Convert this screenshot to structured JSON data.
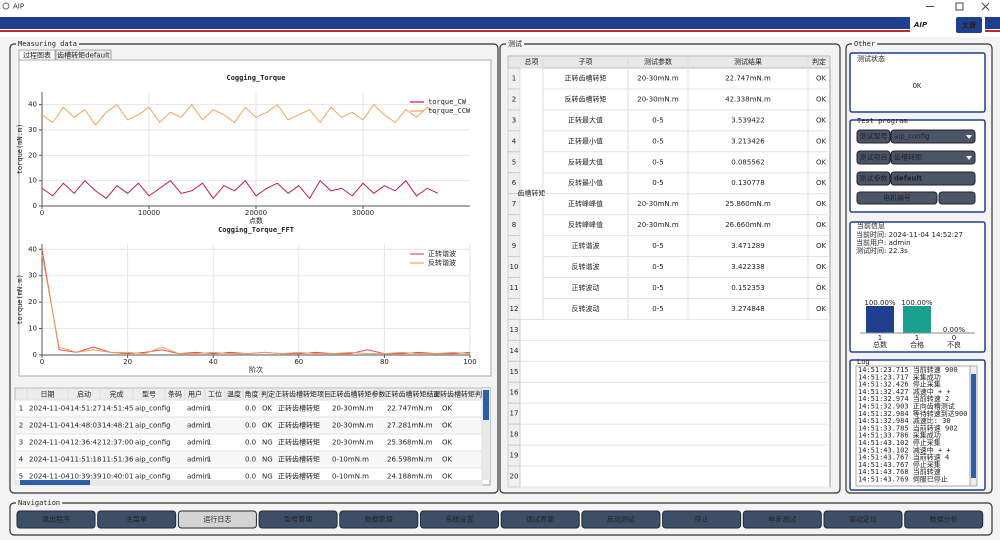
{
  "window": {
    "title": "AIP"
  },
  "header": {
    "logo": "AIP",
    "logo_cn": "文普"
  },
  "measuring": {
    "title": "Measuring data",
    "tabs": [
      "过程图表",
      "齿槽转矩default"
    ]
  },
  "chart_data": [
    {
      "type": "line",
      "title": "Cogging_Torque",
      "x_label": "点数",
      "y_label": "torque(mN.m)",
      "x": [
        0,
        1000,
        2000,
        3000,
        4000,
        5000,
        6000,
        7000,
        8000,
        9000,
        10000,
        11000,
        12000,
        13000,
        14000,
        15000,
        16000,
        17000,
        18000,
        19000,
        20000,
        21000,
        22000,
        23000,
        24000,
        25000,
        26000,
        27000,
        28000,
        29000,
        30000,
        31000,
        32000,
        33000,
        34000,
        35000,
        36000,
        37000
      ],
      "series": [
        {
          "name": "torque_CW",
          "color": "#c2185b",
          "values": [
            7,
            4,
            9,
            5,
            10,
            6,
            3,
            8,
            5,
            9,
            4,
            7,
            10,
            5,
            6,
            9,
            3,
            8,
            6,
            10,
            4,
            7,
            9,
            5,
            8,
            3,
            10,
            6,
            7,
            4,
            9,
            5,
            8,
            6,
            10,
            4,
            7,
            5
          ]
        },
        {
          "name": "torque_CCW",
          "color": "#f4a460",
          "values": [
            36,
            33,
            39,
            35,
            38,
            32,
            37,
            40,
            34,
            36,
            39,
            33,
            37,
            35,
            40,
            34,
            38,
            36,
            33,
            39,
            35,
            37,
            40,
            34,
            36,
            38,
            33,
            39,
            35,
            37,
            34,
            40,
            36,
            33,
            38,
            35,
            39,
            36
          ]
        }
      ],
      "xlim": [
        0,
        40000
      ],
      "xticks": [
        0,
        10000,
        20000,
        30000
      ],
      "ylim": [
        0,
        45
      ],
      "yticks": [
        0,
        10,
        20,
        30,
        40
      ],
      "grid": true,
      "legend": "upper right"
    },
    {
      "type": "line",
      "title": "Cogging_Torque_FFT",
      "x_label": "阶次",
      "y_label": "torque(mN.m)",
      "x": [
        0,
        4,
        8,
        12,
        16,
        20,
        24,
        28,
        32,
        36,
        40,
        44,
        48,
        52,
        56,
        60,
        64,
        68,
        72,
        76,
        80,
        84,
        88,
        92,
        96,
        100
      ],
      "series": [
        {
          "name": "正转谐波",
          "color": "#d9534f",
          "values": [
            40,
            2,
            1,
            3,
            1,
            0.5,
            1,
            2,
            0.5,
            1,
            0.5,
            1,
            0.5,
            1,
            0.5,
            0.5,
            1,
            0.5,
            0.5,
            2,
            0.5,
            0.5,
            1,
            0.5,
            0.5,
            1
          ]
        },
        {
          "name": "反转谐波",
          "color": "#f0a060",
          "values": [
            38,
            3,
            1,
            2,
            1,
            1,
            0.5,
            3,
            0.5,
            0.5,
            1,
            0.5,
            0.5,
            1,
            0.5,
            1,
            0.5,
            0.5,
            1,
            0.5,
            0.5,
            1,
            0.5,
            0.5,
            1,
            0.5
          ]
        }
      ],
      "xlim": [
        0,
        100
      ],
      "xticks": [
        0,
        20,
        40,
        60,
        80,
        100
      ],
      "ylim": [
        0,
        42
      ],
      "yticks": [
        0,
        10,
        20,
        30,
        40
      ],
      "grid": true,
      "legend": "upper right"
    },
    {
      "type": "bar",
      "categories": [
        "总数",
        "合格",
        "不良"
      ],
      "counts": [
        1,
        1,
        0
      ],
      "values": [
        100,
        100,
        0
      ],
      "value_labels": [
        "100.00%",
        "100.00%",
        "0.00%"
      ],
      "colors": [
        "#1f3f8f",
        "#1aa08f",
        "#999999"
      ],
      "ylim": [
        0,
        100
      ]
    }
  ],
  "history_table": {
    "columns": [
      "日期",
      "启动",
      "完成",
      "型号",
      "条码",
      "用户",
      "工位",
      "温度",
      "角度",
      "判定",
      "正转齿槽转矩项目",
      "正转齿槽转矩参数",
      "正转齿槽转矩结果",
      "正转齿槽转矩判定"
    ],
    "row_numbers": [
      1,
      2,
      3,
      4,
      5
    ],
    "rows": [
      [
        "2024-11-04",
        "14:51:27",
        "14:51:45",
        "aip_config",
        null,
        "admin",
        "1",
        null,
        "0.0",
        "OK",
        "正转齿槽转矩",
        "20-30mN.m",
        "22.747mN.m",
        "OK"
      ],
      [
        "2024-11-04",
        "14:48:03",
        "14:48:21",
        "aip_config",
        null,
        "admin",
        "1",
        null,
        "0.0",
        "OK",
        "正转齿槽转矩",
        "20-30mN.m",
        "27.281mN.m",
        "OK"
      ],
      [
        "2024-11-04",
        "12:36:42",
        "12:37:00",
        "aip_config",
        null,
        "admin",
        "1",
        null,
        "0.0",
        "NG",
        "正转齿槽转矩",
        "20-30mN.m",
        "25.368mN.m",
        "OK"
      ],
      [
        "2024-11-04",
        "11:51:18",
        "11:51:36",
        "aip_config",
        null,
        "admin",
        "1",
        null,
        "0.0",
        "NG",
        "正转齿槽转矩",
        "0-10mN.m",
        "26.598mN.m",
        "OK"
      ],
      [
        "2024-11-04",
        "10:39:39",
        "10:40:01",
        "aip_config",
        null,
        "admin",
        "1",
        null,
        "0.0",
        "NG",
        "正转齿槽转矩",
        "0-10mN.m",
        "24.188mN.m",
        "OK"
      ]
    ]
  },
  "test": {
    "title": "测试",
    "columns": [
      "总项",
      "子项",
      "测试参数",
      "测试结果",
      "判定"
    ],
    "group": "齿槽转矩",
    "row_numbers": [
      1,
      2,
      3,
      4,
      5,
      6,
      7,
      8,
      9,
      10,
      11,
      12,
      13,
      14,
      15,
      16,
      17,
      18,
      19,
      20
    ],
    "rows": [
      [
        "正转齿槽转矩",
        "20-30mN.m",
        "22.747mN.m",
        "OK"
      ],
      [
        "反转齿槽转矩",
        "20-30mN.m",
        "42.338mN.m",
        "OK"
      ],
      [
        "正转最大值",
        "0-5",
        "3.539422",
        "OK"
      ],
      [
        "正转最小值",
        "0-5",
        "3.213426",
        "OK"
      ],
      [
        "反转最大值",
        "0-5",
        "0.085562",
        "OK"
      ],
      [
        "反转最小值",
        "0-5",
        "0.130778",
        "OK"
      ],
      [
        "正转峰峰值",
        "20-30mN.m",
        "25.860mN.m",
        "OK"
      ],
      [
        "反转峰峰值",
        "20-30mN.m",
        "26.660mN.m",
        "OK"
      ],
      [
        "正转谐波",
        "0-5",
        "3.471289",
        "OK"
      ],
      [
        "反转谐波",
        "0-5",
        "3.422338",
        "OK"
      ],
      [
        "正转波动",
        "0-5",
        "0.152353",
        "OK"
      ],
      [
        "反转波动",
        "0-5",
        "3.274848",
        "OK"
      ]
    ]
  },
  "other": {
    "title": "Other",
    "status_title": "测试状态",
    "status": "OK",
    "program_title": "Test program",
    "program": [
      {
        "label": "测试型号",
        "value": "aip_config"
      },
      {
        "label": "测试项目",
        "value": "齿槽转矩"
      },
      {
        "label": "测试参数",
        "value": "default"
      },
      {
        "label": "电机编号"
      }
    ],
    "info_title": "当前信息",
    "info": [
      "当前时间: 2024-11-04 14:52:27",
      "当前用户: admin",
      "测试时间: 22.3s"
    ],
    "log_title": "Log",
    "log": [
      "14:51:23.715 当前转速 900",
      "14:51:23.717 采集成功",
      "14:51:32.426 停止采集",
      "14:51:32.427 减速中 + +",
      "14:51:32.974 当前转速 2",
      "14:51:32.903 正向齿槽测试",
      "14:51:32.984 等待转速到达900",
      "14:51:32.984 减速比: 30",
      "14:51:33.785 当前转速 902",
      "14:51:33.786 采集成功",
      "14:51:43.102 停止采集",
      "14:51:43.102 减速中 + +",
      "14:51:43.767 当前转速 4",
      "14:51:43.767 停止采集",
      "14:51:43.768 当前转速",
      "14:51:43.769 伺服已停止"
    ]
  },
  "navigation": {
    "title": "Navigation",
    "buttons": [
      "退出程序",
      "主菜单",
      "运行日志",
      "型号管理",
      "数据管理",
      "系统设置",
      "调试界面",
      "启动测试",
      "停止",
      "单步测试",
      "驱动定位",
      "数据分析"
    ],
    "disabled": [
      2
    ]
  }
}
